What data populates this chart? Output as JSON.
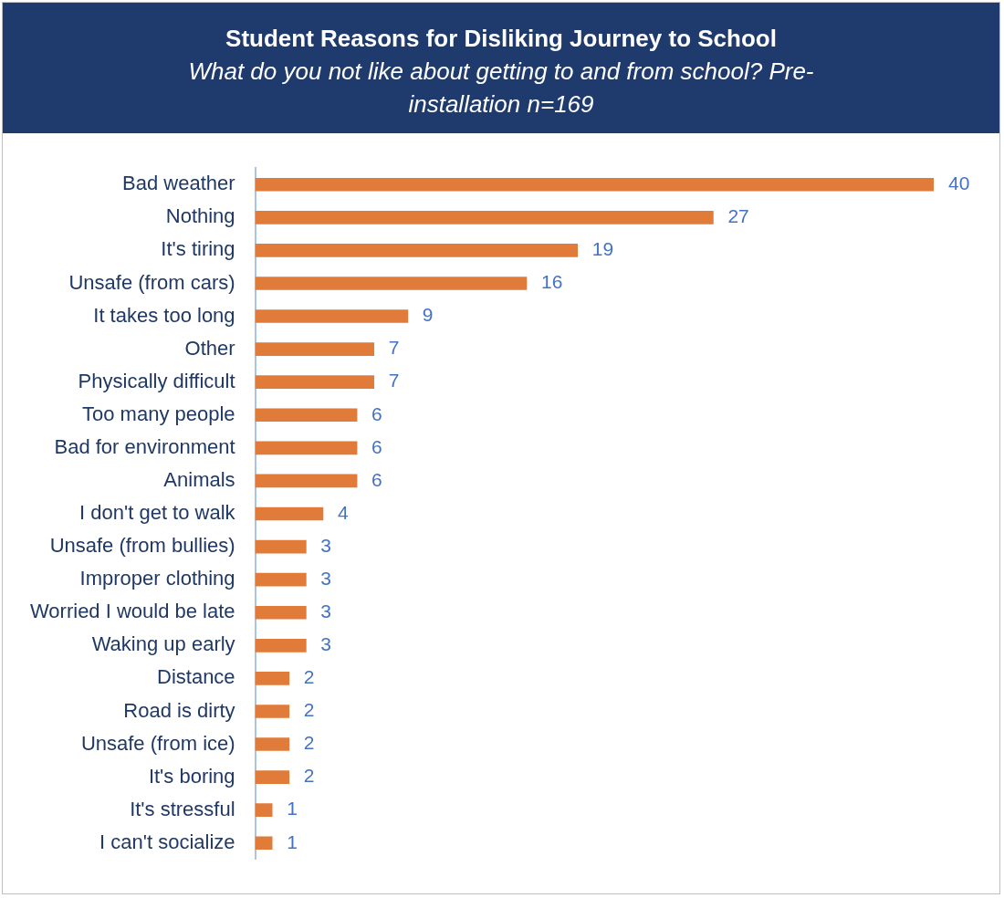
{
  "chart_data": {
    "type": "bar",
    "orientation": "horizontal",
    "title": "Student Reasons for Disliking Journey to School",
    "subtitle": "What do you not like about getting to and from school? Pre-installation n=169",
    "categories": [
      "Bad weather",
      "Nothing",
      "It's tiring",
      "Unsafe (from cars)",
      "It takes too long",
      "Other",
      "Physically difficult",
      "Too many people",
      "Bad for environment",
      "Animals",
      "I don't get to walk",
      "Unsafe (from bullies)",
      "Improper clothing",
      "Worried I would be late",
      "Waking up early",
      "Distance",
      "Road is dirty",
      "Unsafe (from ice)",
      "It's boring",
      "It's stressful",
      "I can't socialize"
    ],
    "values": [
      40,
      27,
      19,
      16,
      9,
      7,
      7,
      6,
      6,
      6,
      4,
      3,
      3,
      3,
      3,
      2,
      2,
      2,
      2,
      1,
      1
    ],
    "color": "#e07b39",
    "data_labels": true,
    "grid": false,
    "legend": false,
    "tick_labels": "y"
  }
}
